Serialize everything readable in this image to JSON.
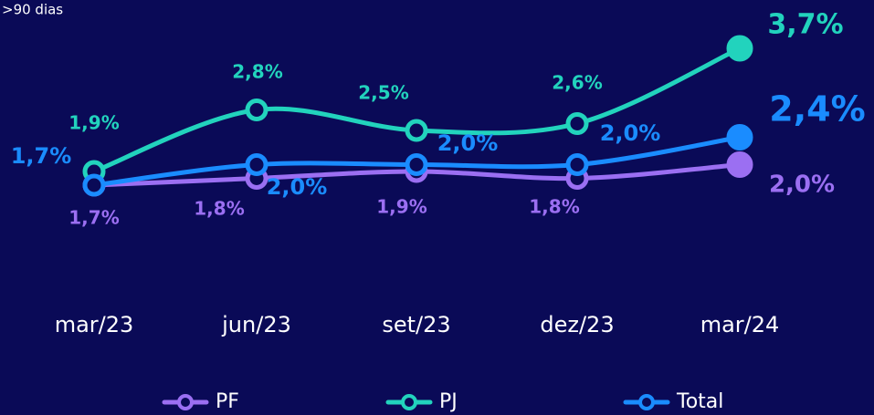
{
  "chart_data": {
    "type": "line",
    "subtitle": ">90 dias",
    "categories": [
      "mar/23",
      "jun/23",
      "set/23",
      "dez/23",
      "mar/24"
    ],
    "series": [
      {
        "name": "PF",
        "color": "#9b6ff2",
        "values": [
          1.7,
          1.8,
          1.9,
          1.8,
          2.0
        ],
        "value_labels": [
          "1,7%",
          "1,8%",
          "1,9%",
          "1,8%",
          "2,0%"
        ]
      },
      {
        "name": "PJ",
        "color": "#22d3bd",
        "values": [
          1.9,
          2.8,
          2.5,
          2.6,
          3.7
        ],
        "value_labels": [
          "1,9%",
          "2,8%",
          "2,5%",
          "2,6%",
          "3,7%"
        ]
      },
      {
        "name": "Total",
        "color": "#1a8cff",
        "values": [
          1.7,
          2.0,
          2.0,
          2.0,
          2.4
        ],
        "value_labels": [
          "1,7%",
          "2,0%",
          "2,0%",
          "2,0%",
          "2,4%"
        ]
      }
    ],
    "ylim": [
      1.5,
      3.9
    ],
    "legend": "bottom"
  }
}
